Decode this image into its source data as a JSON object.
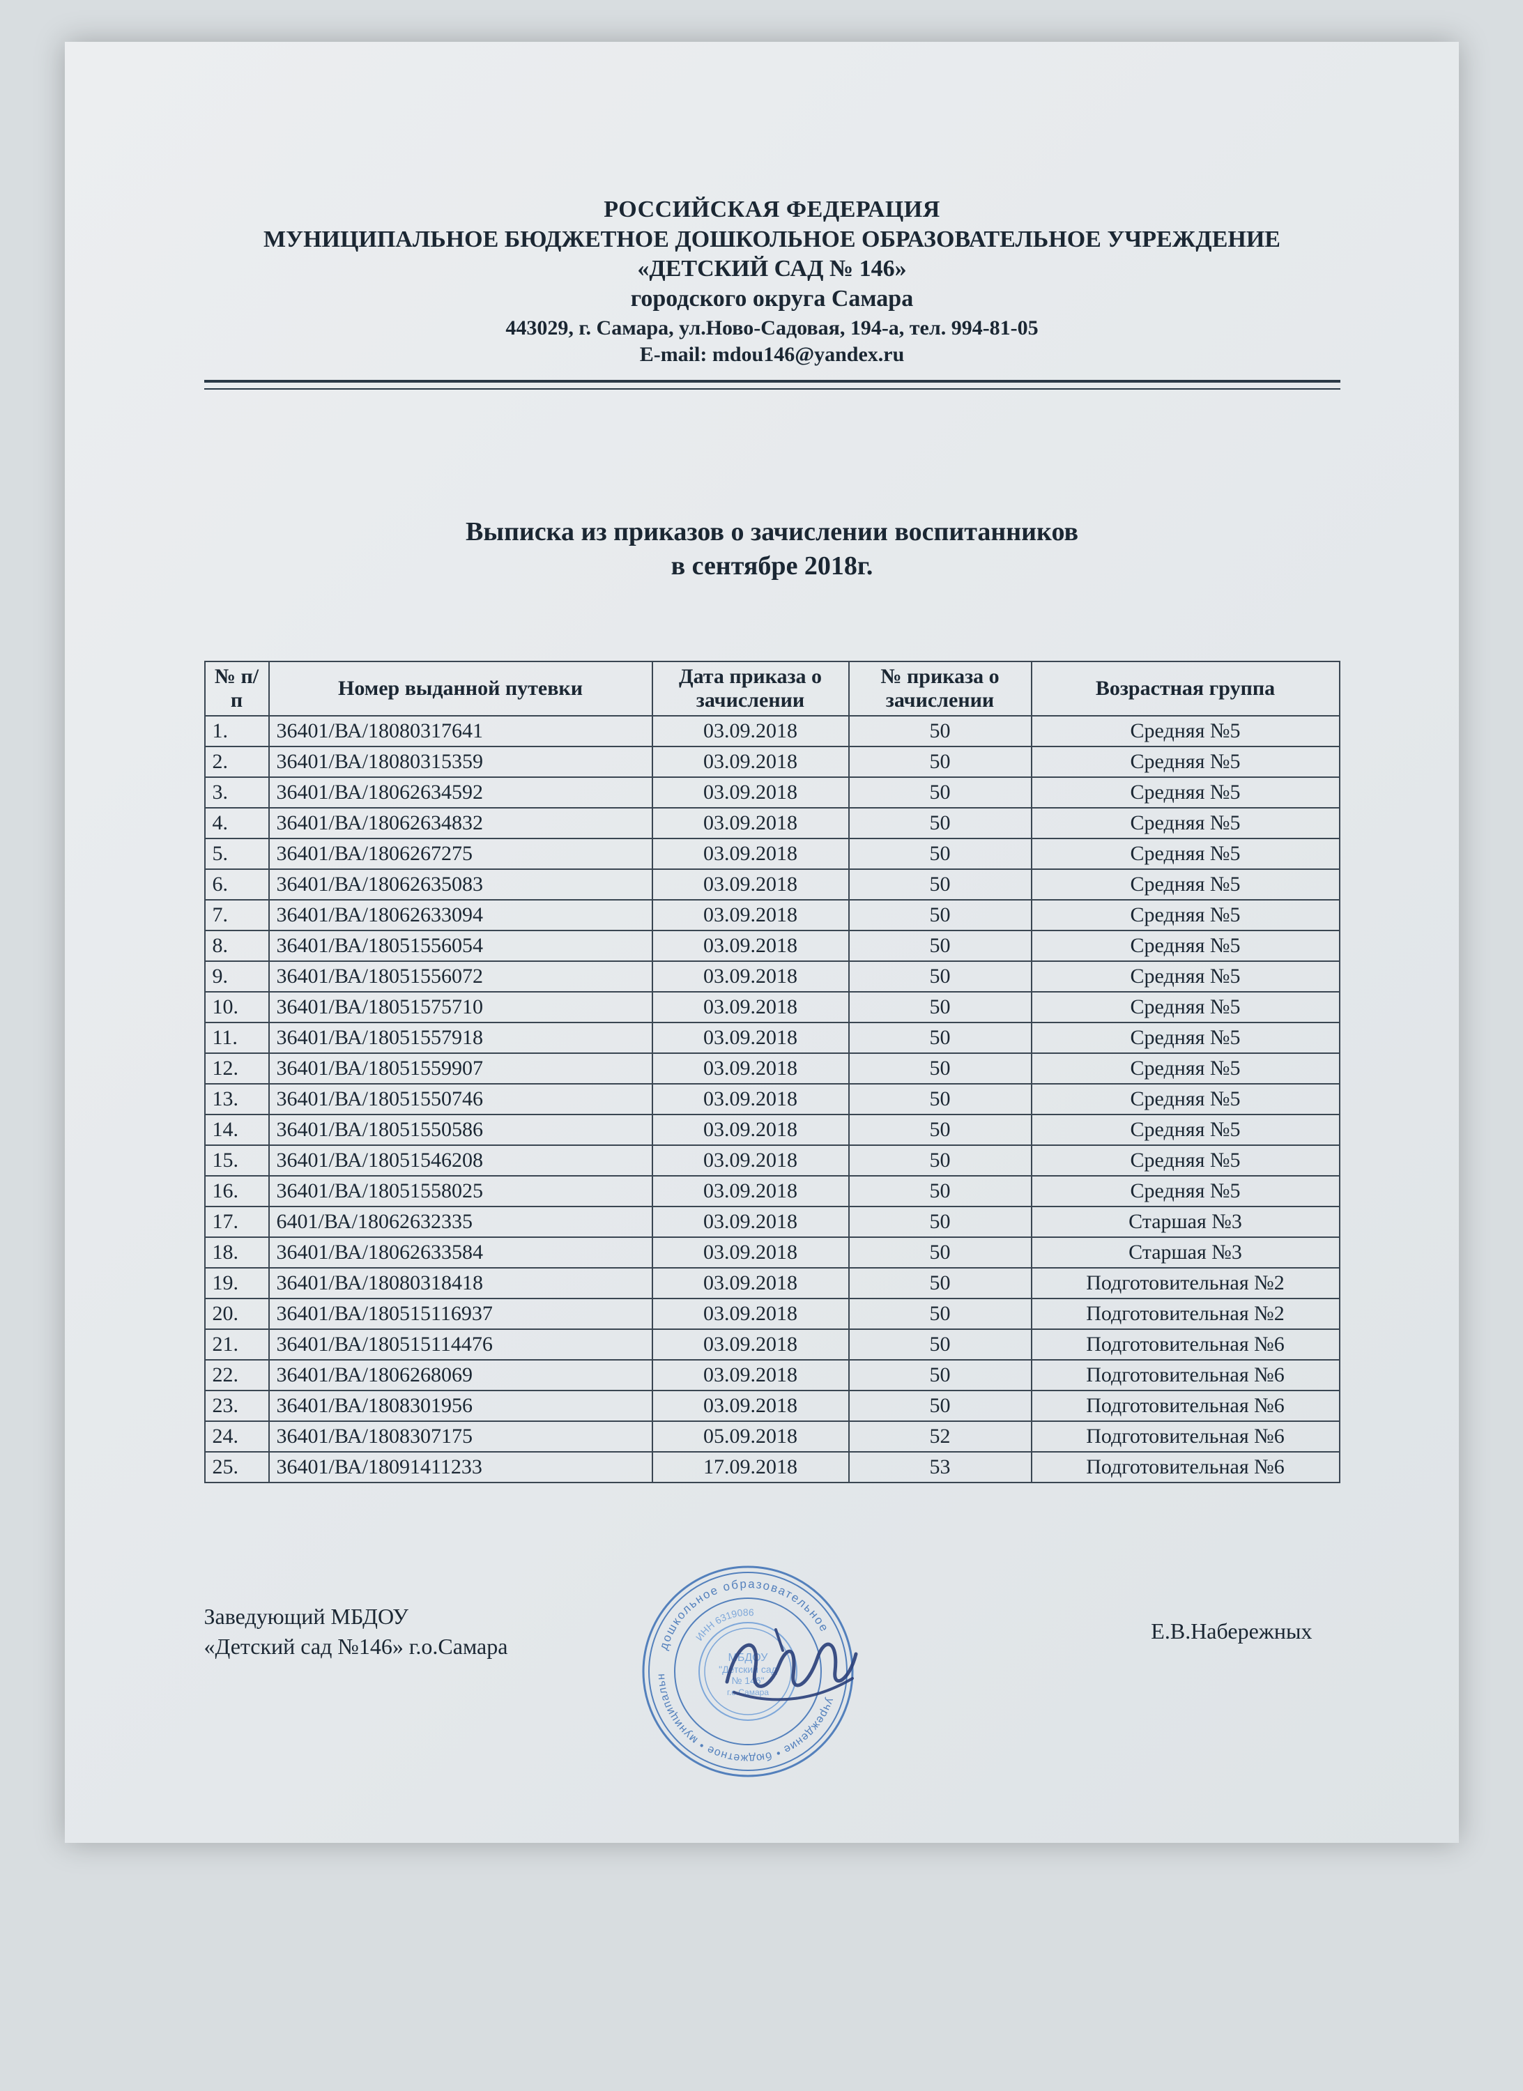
{
  "letterhead": {
    "line1": "РОССИЙСКАЯ ФЕДЕРАЦИЯ",
    "line2": "МУНИЦИПАЛЬНОЕ БЮДЖЕТНОЕ ДОШКОЛЬНОЕ ОБРАЗОВАТЕЛЬНОЕ УЧРЕЖДЕНИЕ",
    "line3": "«ДЕТСКИЙ САД № 146»",
    "line4": "городского округа Самара",
    "line5": "443029, г. Самара, ул.Ново-Садовая, 194-а, тел. 994-81-05",
    "line6": "E-mail: mdou146@yandex.ru"
  },
  "title": {
    "line1": "Выписка из приказов о зачислении воспитанников",
    "line2": "в сентябре 2018г."
  },
  "table": {
    "headers": {
      "idx": "№ п/п",
      "number": "Номер выданной путевки",
      "date": "Дата приказа о зачислении",
      "order": "№ приказа о зачислении",
      "group": "Возрастная группа"
    },
    "rows": [
      {
        "idx": "1.",
        "number": "36401/ВА/18080317641",
        "date": "03.09.2018",
        "order": "50",
        "group": "Средняя №5"
      },
      {
        "idx": "2.",
        "number": "36401/ВА/18080315359",
        "date": "03.09.2018",
        "order": "50",
        "group": "Средняя №5"
      },
      {
        "idx": "3.",
        "number": "36401/ВА/18062634592",
        "date": "03.09.2018",
        "order": "50",
        "group": "Средняя №5"
      },
      {
        "idx": "4.",
        "number": "36401/ВА/18062634832",
        "date": "03.09.2018",
        "order": "50",
        "group": "Средняя №5"
      },
      {
        "idx": "5.",
        "number": "36401/ВА/1806267275",
        "date": "03.09.2018",
        "order": "50",
        "group": "Средняя №5"
      },
      {
        "idx": "6.",
        "number": "36401/ВА/18062635083",
        "date": "03.09.2018",
        "order": "50",
        "group": "Средняя №5"
      },
      {
        "idx": "7.",
        "number": "36401/ВА/18062633094",
        "date": "03.09.2018",
        "order": "50",
        "group": "Средняя №5"
      },
      {
        "idx": "8.",
        "number": "36401/ВА/18051556054",
        "date": "03.09.2018",
        "order": "50",
        "group": "Средняя №5"
      },
      {
        "idx": "9.",
        "number": "36401/ВА/18051556072",
        "date": "03.09.2018",
        "order": "50",
        "group": "Средняя №5"
      },
      {
        "idx": "10.",
        "number": "36401/ВА/18051575710",
        "date": "03.09.2018",
        "order": "50",
        "group": "Средняя №5"
      },
      {
        "idx": "11.",
        "number": "36401/ВА/18051557918",
        "date": "03.09.2018",
        "order": "50",
        "group": "Средняя №5"
      },
      {
        "idx": "12.",
        "number": "36401/ВА/18051559907",
        "date": "03.09.2018",
        "order": "50",
        "group": "Средняя №5"
      },
      {
        "idx": "13.",
        "number": "36401/ВА/18051550746",
        "date": "03.09.2018",
        "order": "50",
        "group": "Средняя №5"
      },
      {
        "idx": "14.",
        "number": "36401/ВА/18051550586",
        "date": "03.09.2018",
        "order": "50",
        "group": "Средняя №5"
      },
      {
        "idx": "15.",
        "number": "36401/ВА/18051546208",
        "date": "03.09.2018",
        "order": "50",
        "group": "Средняя №5"
      },
      {
        "idx": "16.",
        "number": "36401/ВА/18051558025",
        "date": "03.09.2018",
        "order": "50",
        "group": "Средняя №5"
      },
      {
        "idx": "17.",
        "number": "6401/ВА/18062632335",
        "date": "03.09.2018",
        "order": "50",
        "group": "Старшая №3"
      },
      {
        "idx": "18.",
        "number": "36401/ВА/18062633584",
        "date": "03.09.2018",
        "order": "50",
        "group": "Старшая №3"
      },
      {
        "idx": "19.",
        "number": "36401/ВА/18080318418",
        "date": "03.09.2018",
        "order": "50",
        "group": "Подготовительная №2"
      },
      {
        "idx": "20.",
        "number": "36401/ВА/180515116937",
        "date": "03.09.2018",
        "order": "50",
        "group": "Подготовительная №2"
      },
      {
        "idx": "21.",
        "number": "36401/ВА/180515114476",
        "date": "03.09.2018",
        "order": "50",
        "group": "Подготовительная №6"
      },
      {
        "idx": "22.",
        "number": "36401/ВА/1806268069",
        "date": "03.09.2018",
        "order": "50",
        "group": "Подготовительная №6"
      },
      {
        "idx": "23.",
        "number": "36401/ВА/1808301956",
        "date": "03.09.2018",
        "order": "50",
        "group": "Подготовительная №6"
      },
      {
        "idx": "24.",
        "number": "36401/ВА/1808307175",
        "date": "05.09.2018",
        "order": "52",
        "group": "Подготовительная №6"
      },
      {
        "idx": "25.",
        "number": "36401/ВА/18091411233",
        "date": "17.09.2018",
        "order": "53",
        "group": "Подготовительная №6"
      }
    ]
  },
  "signature": {
    "position_line1": "Заведующий МБДОУ",
    "position_line2": "«Детский сад №146» г.о.Самара",
    "name": "Е.В.Набережных"
  },
  "colors": {
    "text": "#1b2733",
    "border": "#3a4652",
    "stamp": "#3b6fb5",
    "stamp_inner": "#6d9dd7",
    "signature_ink": "#2a3f7a",
    "page_bg": "#e8ebee"
  }
}
